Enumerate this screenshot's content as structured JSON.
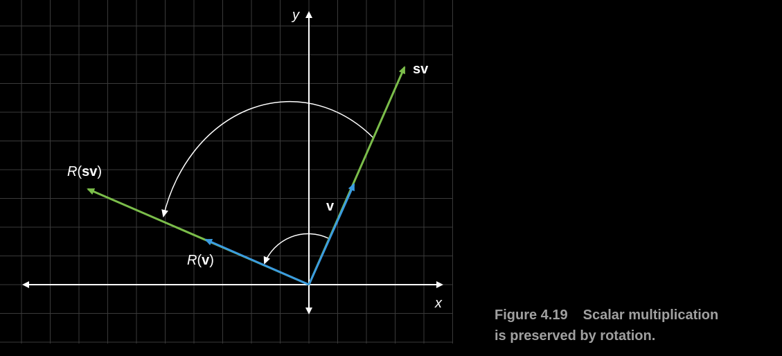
{
  "figure": {
    "number": "Figure 4.19",
    "caption_line1": "Scalar multiplication",
    "caption_line2": "is preserved by rotation."
  },
  "axes": {
    "x_label": "x",
    "y_label": "y"
  },
  "vectors": {
    "v": {
      "label": "v",
      "x": 1.5,
      "y": 3.5
    },
    "sv": {
      "label": "sv",
      "x": 3.4,
      "y": 7.6
    },
    "R_v": {
      "label_fn": "R",
      "label_arg": "v",
      "x": -3.5,
      "y": 1.55
    },
    "R_sv": {
      "label_fn": "R",
      "label_arg": "sv",
      "x": -7.6,
      "y": 3.4
    }
  },
  "colors": {
    "background": "#000000",
    "grid": "#3a3a3a",
    "axis": "#ffffff",
    "vector_v": "#3a9be0",
    "vector_sv": "#7bbd4a",
    "arc": "#ffffff",
    "caption": "#a0a0a0"
  }
}
